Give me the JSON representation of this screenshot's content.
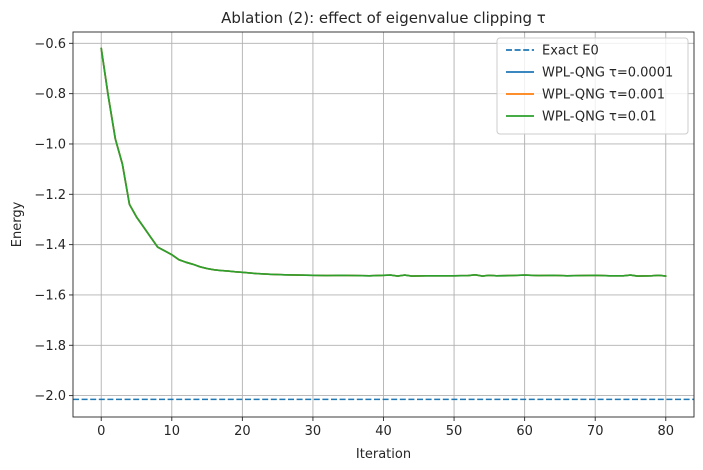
{
  "chart_data": {
    "type": "line",
    "title": "Ablation (2): effect of eigenvalue clipping τ",
    "xlabel": "Iteration",
    "ylabel": "Energy",
    "xlim": [
      -4,
      84
    ],
    "ylim": [
      -2.085,
      -0.555
    ],
    "xticks": [
      0,
      10,
      20,
      30,
      40,
      50,
      60,
      70,
      80
    ],
    "yticks": [
      -0.6,
      -0.8,
      -1.0,
      -1.2,
      -1.4,
      -1.6,
      -1.8,
      -2.0
    ],
    "xtick_labels": [
      "0",
      "10",
      "20",
      "30",
      "40",
      "50",
      "60",
      "70",
      "80"
    ],
    "ytick_labels": [
      "−0.6",
      "−0.8",
      "−1.0",
      "−1.2",
      "−1.4",
      "−1.6",
      "−1.8",
      "−2.0"
    ],
    "grid": true,
    "legend_position": "top-right",
    "reference_line": {
      "name": "Exact E0",
      "y": -2.015,
      "color": "#1f77b4",
      "style": "dashed"
    },
    "series": [
      {
        "name": "WPL-QNG τ=0.0001",
        "color": "#1f77b4",
        "x": [
          0,
          1,
          2,
          3,
          4,
          5,
          6,
          7,
          8,
          9,
          10,
          11,
          12,
          13,
          14,
          15,
          16,
          17,
          18,
          19,
          20,
          22,
          24,
          26,
          28,
          30,
          32,
          34,
          36,
          38,
          40,
          41,
          42,
          43,
          44,
          46,
          48,
          50,
          52,
          53,
          54,
          55,
          56,
          58,
          60,
          62,
          64,
          66,
          68,
          70,
          72,
          74,
          75,
          76,
          78,
          79,
          80
        ],
        "y": [
          -0.62,
          -0.81,
          -0.98,
          -1.08,
          -1.24,
          -1.29,
          -1.33,
          -1.37,
          -1.41,
          -1.425,
          -1.44,
          -1.46,
          -1.47,
          -1.478,
          -1.488,
          -1.495,
          -1.5,
          -1.503,
          -1.505,
          -1.508,
          -1.51,
          -1.515,
          -1.518,
          -1.52,
          -1.521,
          -1.522,
          -1.523,
          -1.522,
          -1.523,
          -1.524,
          -1.522,
          -1.521,
          -1.525,
          -1.521,
          -1.525,
          -1.524,
          -1.524,
          -1.524,
          -1.523,
          -1.52,
          -1.525,
          -1.522,
          -1.524,
          -1.523,
          -1.521,
          -1.523,
          -1.522,
          -1.524,
          -1.523,
          -1.522,
          -1.524,
          -1.524,
          -1.521,
          -1.525,
          -1.524,
          -1.522,
          -1.525
        ]
      },
      {
        "name": "WPL-QNG τ=0.001",
        "color": "#ff7f0e",
        "x": [
          0,
          1,
          2,
          3,
          4,
          5,
          6,
          7,
          8,
          9,
          10,
          11,
          12,
          13,
          14,
          15,
          16,
          17,
          18,
          19,
          20,
          22,
          24,
          26,
          28,
          30,
          32,
          34,
          36,
          38,
          40,
          41,
          42,
          43,
          44,
          46,
          48,
          50,
          52,
          53,
          54,
          55,
          56,
          58,
          60,
          62,
          64,
          66,
          68,
          70,
          72,
          74,
          75,
          76,
          78,
          79,
          80
        ],
        "y": [
          -0.62,
          -0.81,
          -0.98,
          -1.08,
          -1.24,
          -1.29,
          -1.33,
          -1.37,
          -1.41,
          -1.425,
          -1.44,
          -1.46,
          -1.47,
          -1.478,
          -1.488,
          -1.495,
          -1.5,
          -1.503,
          -1.505,
          -1.508,
          -1.51,
          -1.515,
          -1.518,
          -1.52,
          -1.521,
          -1.522,
          -1.523,
          -1.522,
          -1.523,
          -1.524,
          -1.522,
          -1.521,
          -1.525,
          -1.521,
          -1.525,
          -1.524,
          -1.524,
          -1.524,
          -1.523,
          -1.52,
          -1.525,
          -1.522,
          -1.524,
          -1.523,
          -1.521,
          -1.523,
          -1.522,
          -1.524,
          -1.523,
          -1.522,
          -1.524,
          -1.524,
          -1.521,
          -1.525,
          -1.524,
          -1.522,
          -1.525
        ]
      },
      {
        "name": "WPL-QNG τ=0.01",
        "color": "#2ca02c",
        "x": [
          0,
          1,
          2,
          3,
          4,
          5,
          6,
          7,
          8,
          9,
          10,
          11,
          12,
          13,
          14,
          15,
          16,
          17,
          18,
          19,
          20,
          22,
          24,
          26,
          28,
          30,
          32,
          34,
          36,
          38,
          40,
          41,
          42,
          43,
          44,
          46,
          48,
          50,
          52,
          53,
          54,
          55,
          56,
          58,
          60,
          62,
          64,
          66,
          68,
          70,
          72,
          74,
          75,
          76,
          78,
          79,
          80
        ],
        "y": [
          -0.62,
          -0.81,
          -0.98,
          -1.08,
          -1.24,
          -1.29,
          -1.33,
          -1.37,
          -1.41,
          -1.425,
          -1.44,
          -1.46,
          -1.47,
          -1.478,
          -1.488,
          -1.495,
          -1.5,
          -1.503,
          -1.505,
          -1.508,
          -1.51,
          -1.515,
          -1.518,
          -1.52,
          -1.521,
          -1.522,
          -1.523,
          -1.522,
          -1.523,
          -1.524,
          -1.522,
          -1.521,
          -1.525,
          -1.521,
          -1.525,
          -1.524,
          -1.524,
          -1.524,
          -1.523,
          -1.52,
          -1.525,
          -1.522,
          -1.524,
          -1.523,
          -1.521,
          -1.523,
          -1.522,
          -1.524,
          -1.523,
          -1.522,
          -1.524,
          -1.524,
          -1.521,
          -1.525,
          -1.524,
          -1.522,
          -1.525
        ]
      }
    ]
  }
}
